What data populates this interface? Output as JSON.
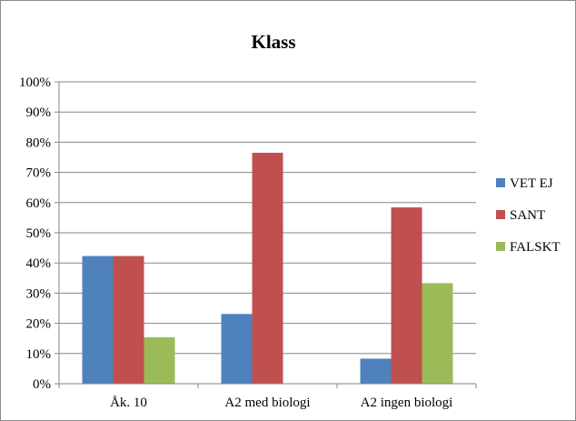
{
  "chart_data": {
    "type": "bar",
    "title": "Klass",
    "categories": [
      "Åk. 10",
      "A2 med biologi",
      "A2 ingen biologi"
    ],
    "series": [
      {
        "name": "VET EJ",
        "color": "#4f81bd",
        "values": [
          42.3,
          23.1,
          8.3
        ]
      },
      {
        "name": "SANT",
        "color": "#c0504d",
        "values": [
          42.3,
          76.5,
          58.4
        ]
      },
      {
        "name": "FALSKT",
        "color": "#9bbb59",
        "values": [
          15.4,
          0,
          33.3
        ]
      }
    ],
    "ylim": [
      0,
      100
    ],
    "yticks": [
      "0%",
      "10%",
      "20%",
      "30%",
      "40%",
      "50%",
      "60%",
      "70%",
      "80%",
      "90%",
      "100%"
    ],
    "grid": true,
    "legend_position": "right"
  }
}
